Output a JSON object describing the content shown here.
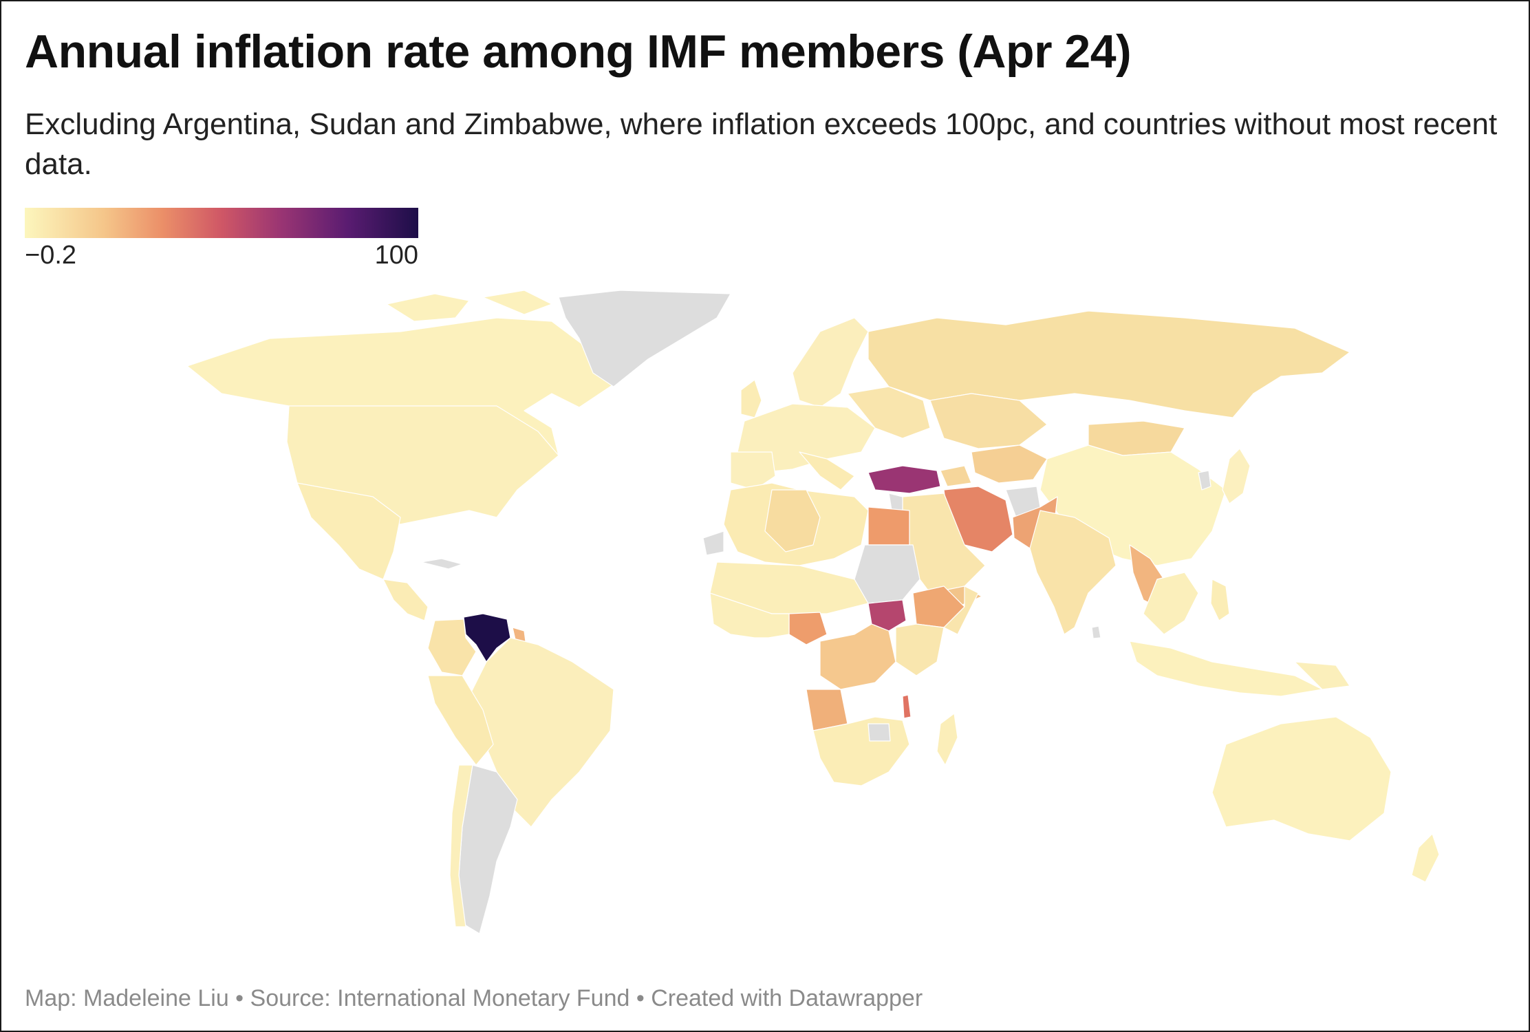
{
  "title": "Annual inflation rate among IMF members (Apr 24)",
  "subtitle": "Excluding Argentina, Sudan and Zimbabwe, where inflation exceeds 100pc, and countries without most recent data.",
  "legend": {
    "min_label": "−0.2",
    "max_label": "100",
    "min_value": -0.2,
    "max_value": 100,
    "palette": [
      "#fcf6bd",
      "#f5c68a",
      "#eb8f68",
      "#cf5766",
      "#9a3573",
      "#5a1c71",
      "#1d0e48"
    ]
  },
  "colors": {
    "no_data": "#dddddd",
    "background": "#ffffff"
  },
  "footer": "Map: Madeleine Liu • Source: International Monetary Fund • Created with Datawrapper"
}
